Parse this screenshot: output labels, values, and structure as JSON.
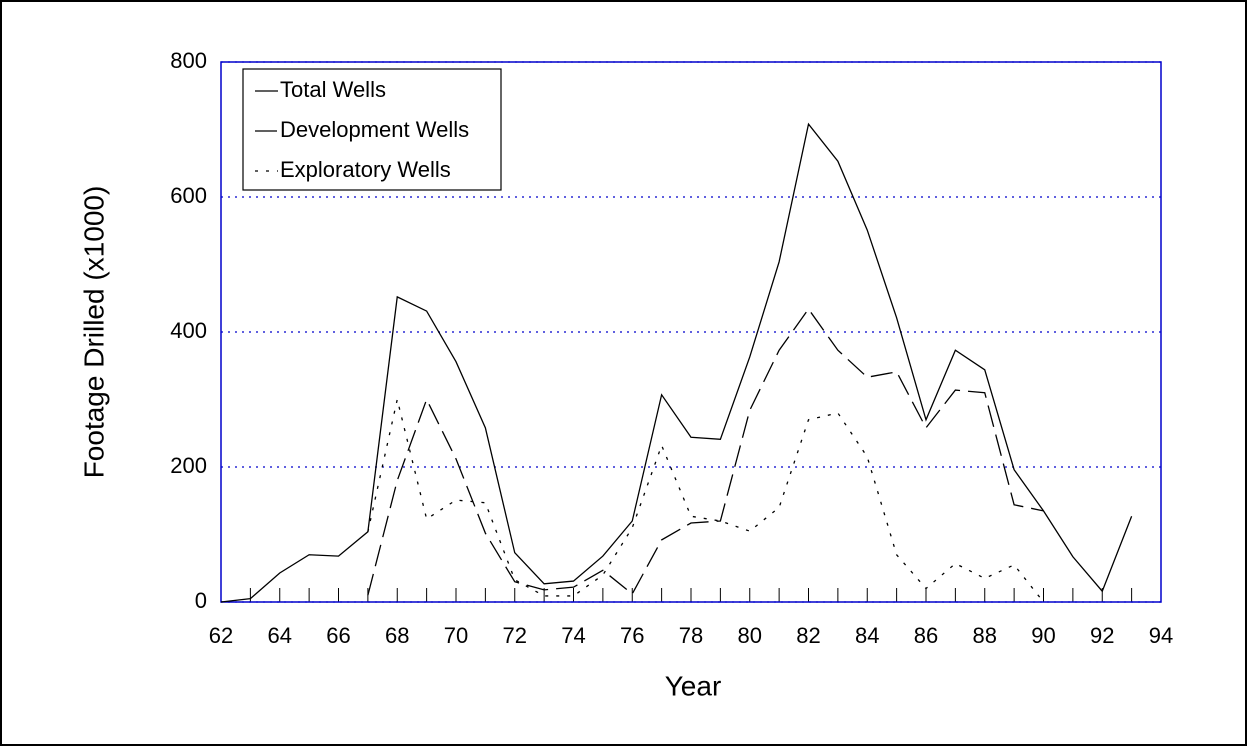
{
  "chart_data": {
    "type": "line",
    "x_label": "Year",
    "y_label": "Footage Drilled (x1000)",
    "x": [
      62,
      63,
      64,
      65,
      66,
      67,
      68,
      69,
      70,
      71,
      72,
      73,
      74,
      75,
      76,
      77,
      78,
      79,
      80,
      81,
      82,
      83,
      84,
      85,
      86,
      87,
      88,
      89,
      90,
      91,
      92,
      93
    ],
    "series": [
      {
        "name": "Total Wells",
        "color": "#000000",
        "dash": "solid",
        "values": [
          0,
          5,
          43,
          70,
          68,
          104,
          452,
          431,
          356,
          258,
          73,
          27,
          31,
          68,
          120,
          307,
          244,
          241,
          363,
          504,
          708,
          653,
          551,
          421,
          270,
          373,
          344,
          196,
          135,
          67,
          16,
          127
        ]
      },
      {
        "name": "Development Wells",
        "color": "#000000",
        "dash": "dashed",
        "values": [
          null,
          null,
          null,
          null,
          null,
          10,
          180,
          300,
          212,
          102,
          30,
          18,
          22,
          47,
          12,
          92,
          117,
          120,
          284,
          373,
          434,
          373,
          333,
          341,
          258,
          314,
          310,
          144,
          135,
          null,
          null,
          null
        ]
      },
      {
        "name": "Exploratory Wells",
        "color": "#000000",
        "dash": "dotted",
        "values": [
          null,
          null,
          null,
          null,
          null,
          104,
          300,
          123,
          151,
          147,
          33,
          9,
          9,
          40,
          110,
          232,
          127,
          120,
          105,
          140,
          270,
          280,
          215,
          70,
          20,
          57,
          35,
          55,
          0,
          null,
          null,
          null
        ]
      }
    ],
    "xlim": [
      62,
      94
    ],
    "xticks": [
      62,
      64,
      66,
      68,
      70,
      72,
      74,
      76,
      78,
      80,
      82,
      84,
      86,
      88,
      90,
      92,
      94
    ],
    "ylim": [
      0,
      800
    ],
    "yticks": [
      0,
      200,
      400,
      600,
      800
    ],
    "grid": true,
    "grid_color": "#0000cc",
    "frame_color": "#0000cc",
    "legend": "upper left"
  }
}
